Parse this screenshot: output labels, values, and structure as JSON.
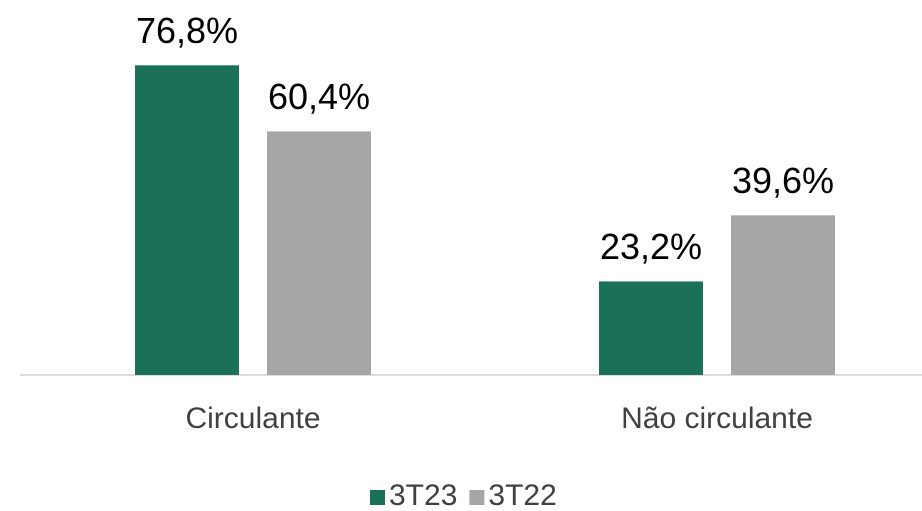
{
  "chart_data": {
    "type": "bar",
    "categories": [
      "Circulante",
      "Não circulante"
    ],
    "series": [
      {
        "name": "3T23",
        "color": "#1b7158",
        "values": [
          76.8,
          23.2
        ],
        "value_labels": [
          "76,8%",
          "23,2%"
        ]
      },
      {
        "name": "3T22",
        "color": "#a6a6a6",
        "values": [
          60.4,
          39.6
        ],
        "value_labels": [
          "60,4%",
          "39,6%"
        ]
      }
    ],
    "ylim": [
      0,
      93
    ],
    "legend": "bottom"
  }
}
